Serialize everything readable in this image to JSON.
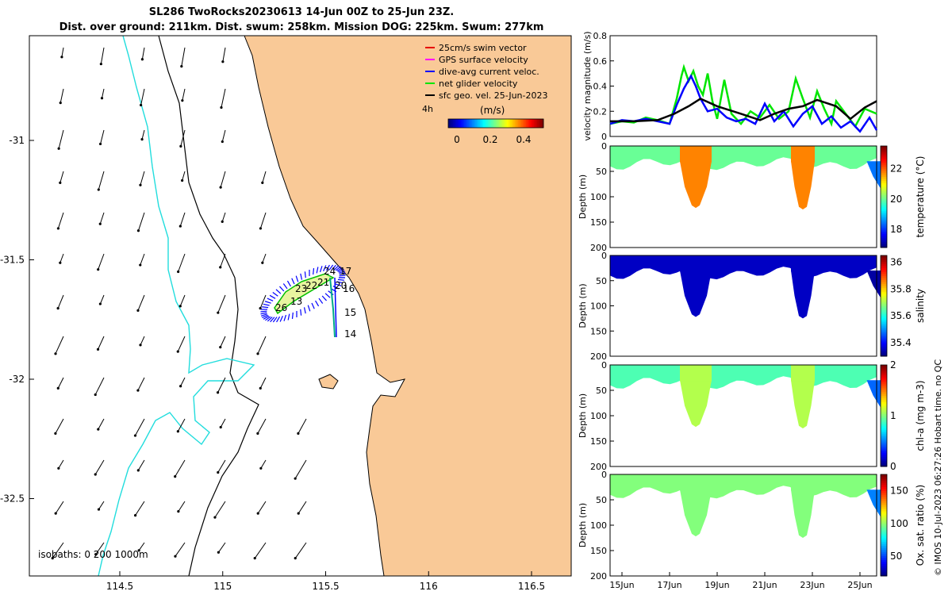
{
  "title": {
    "line1": "SL286 TwoRocks20230613 14-Jun 00Z to 25-Jun 23Z.",
    "line2": "Dist. over ground: 211km. Dist. swum: 258km. Mission DOG: 225km. Swum: 277km"
  },
  "map": {
    "legend": {
      "items": [
        {
          "label": "25cm/s swim vector",
          "color": "#e60000"
        },
        {
          "label": "GPS surface velocity",
          "color": "#ff00ff"
        },
        {
          "label": "dive-avg current veloc.",
          "color": "#0000ff"
        },
        {
          "label": "net glider velocity",
          "color": "#00e600"
        },
        {
          "label": "sfc geo. vel. 25-Jun-2023",
          "color": "#000000"
        }
      ],
      "interval_label": "4h",
      "colorbar_label": "(m/s)",
      "colorbar_ticks": [
        "0",
        "0.2",
        "0.4"
      ]
    },
    "isobaths_label": "isobaths: 0    200  1000m",
    "xticks": [
      "114.5",
      "115",
      "115.5",
      "116",
      "116.5"
    ],
    "yticks": [
      "-31",
      "-31.5",
      "-32",
      "-32.5"
    ],
    "day_labels": [
      "14",
      "15",
      "16",
      "17",
      "20",
      "21",
      "22",
      "23",
      "24",
      "26",
      "13"
    ],
    "land_color": "#f9c997",
    "track_color": "#0000ff"
  },
  "chart_data": [
    {
      "type": "line",
      "title": "",
      "xlabel": "",
      "ylabel": "velocity magnitude (m/s)",
      "xlim": [
        14.5,
        25.7
      ],
      "ylim": [
        0,
        0.8
      ],
      "yticks": [
        "0",
        "0.2",
        "0.4",
        "0.6",
        "0.8"
      ],
      "series": [
        {
          "name": "green",
          "color": "#00e600",
          "x": [
            14.5,
            15.0,
            15.5,
            16.0,
            16.5,
            17.0,
            17.3,
            17.5,
            17.6,
            17.8,
            18.0,
            18.2,
            18.4,
            18.6,
            18.8,
            19.0,
            19.3,
            19.6,
            20.0,
            20.4,
            20.8,
            21.2,
            21.6,
            22.0,
            22.3,
            22.6,
            22.9,
            23.2,
            23.5,
            23.8,
            24.0,
            24.4,
            24.8,
            25.2,
            25.7
          ],
          "values": [
            0.1,
            0.12,
            0.11,
            0.15,
            0.13,
            0.1,
            0.3,
            0.48,
            0.55,
            0.44,
            0.52,
            0.4,
            0.33,
            0.5,
            0.28,
            0.14,
            0.45,
            0.18,
            0.1,
            0.2,
            0.15,
            0.25,
            0.14,
            0.2,
            0.46,
            0.3,
            0.15,
            0.36,
            0.22,
            0.1,
            0.28,
            0.18,
            0.08,
            0.22,
            0.18
          ]
        },
        {
          "name": "blue",
          "color": "#0000ff",
          "x": [
            14.5,
            15.0,
            15.5,
            16.0,
            16.5,
            17.0,
            17.3,
            17.6,
            17.9,
            18.1,
            18.3,
            18.6,
            19.0,
            19.4,
            19.8,
            20.2,
            20.6,
            21.0,
            21.4,
            21.8,
            22.2,
            22.6,
            23.0,
            23.4,
            23.8,
            24.2,
            24.6,
            25.0,
            25.4,
            25.7
          ],
          "values": [
            0.1,
            0.13,
            0.12,
            0.14,
            0.12,
            0.1,
            0.25,
            0.38,
            0.48,
            0.4,
            0.3,
            0.2,
            0.22,
            0.15,
            0.12,
            0.14,
            0.1,
            0.26,
            0.12,
            0.2,
            0.08,
            0.18,
            0.24,
            0.1,
            0.16,
            0.07,
            0.12,
            0.04,
            0.15,
            0.05
          ]
        },
        {
          "name": "black",
          "color": "#000000",
          "x": [
            14.5,
            15.5,
            16.5,
            17.2,
            17.8,
            18.3,
            19.0,
            20.0,
            20.8,
            21.4,
            22.0,
            22.6,
            23.2,
            24.0,
            24.6,
            25.2,
            25.7
          ],
          "values": [
            0.12,
            0.12,
            0.13,
            0.18,
            0.24,
            0.3,
            0.24,
            0.18,
            0.13,
            0.18,
            0.22,
            0.24,
            0.29,
            0.24,
            0.14,
            0.23,
            0.28
          ]
        }
      ]
    },
    {
      "type": "heatmap",
      "ylabel": "Depth (m)",
      "colorbar_label": "temperature (°C)",
      "ylim": [
        0,
        200
      ],
      "yticks": [
        "0",
        "50",
        "100",
        "150",
        "200"
      ],
      "colorbar_ticks": [
        "18",
        "20",
        "22"
      ],
      "colorbar_range": [
        16.8,
        23.5
      ],
      "base_value": 20.0,
      "dive_value": 21.8
    },
    {
      "type": "heatmap",
      "ylabel": "Depth (m)",
      "colorbar_label": "salinity",
      "ylim": [
        0,
        200
      ],
      "yticks": [
        "0",
        "50",
        "100",
        "150",
        "200"
      ],
      "colorbar_ticks": [
        "35.4",
        "35.6",
        "35.8",
        "36"
      ],
      "colorbar_range": [
        35.3,
        36.05
      ],
      "base_value": 35.35,
      "dive_value": 35.35
    },
    {
      "type": "heatmap",
      "ylabel": "Depth (m)",
      "colorbar_label": "chl-a (mg m-3)",
      "ylim": [
        0,
        200
      ],
      "yticks": [
        "0",
        "50",
        "100",
        "150",
        "200"
      ],
      "colorbar_ticks": [
        "0",
        "1",
        "2"
      ],
      "colorbar_range": [
        0,
        2
      ],
      "base_value": 0.9,
      "dive_value": 1.1
    },
    {
      "type": "heatmap",
      "ylabel": "Depth (m)",
      "colorbar_label": "Ox. sat. ratio (%)",
      "ylim": [
        0,
        200
      ],
      "yticks": [
        "0",
        "50",
        "100",
        "150",
        "200"
      ],
      "colorbar_ticks": [
        "50",
        "100",
        "150"
      ],
      "colorbar_range": [
        20,
        175
      ],
      "base_value": 98,
      "dive_value": 98
    }
  ],
  "time_axis": {
    "ticks": [
      "15Jun",
      "17Jun",
      "19Jun",
      "21Jun",
      "23Jun",
      "25Jun"
    ],
    "tick_values": [
      15,
      17,
      19,
      21,
      23,
      25
    ],
    "xlim": [
      14.5,
      25.7
    ],
    "dives": [
      {
        "center": 18.1,
        "depth": 122
      },
      {
        "center": 22.6,
        "depth": 125
      }
    ]
  },
  "credit": "© IMOS 10-Jul-2023 06:27:26 Hobart time. no QC"
}
